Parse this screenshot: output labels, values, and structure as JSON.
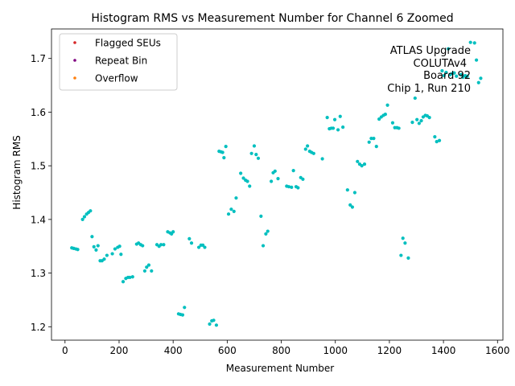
{
  "chart_data": {
    "type": "scatter",
    "title": "Histogram RMS vs Measurement Number for Channel 6 Zoomed",
    "xlabel": "Measurement Number",
    "ylabel": "Histogram RMS",
    "xlim": [
      -50,
      1620
    ],
    "ylim": [
      1.175,
      1.755
    ],
    "xticks": [
      0,
      200,
      400,
      600,
      800,
      1000,
      1200,
      1400,
      1600
    ],
    "yticks": [
      1.2,
      1.3,
      1.4,
      1.5,
      1.6,
      1.7
    ],
    "grid": false,
    "legend": {
      "placement": "upper-left",
      "entries": [
        {
          "label": "Flagged SEUs",
          "color": "#d62728"
        },
        {
          "label": "Repeat Bin",
          "color": "#800080"
        },
        {
          "label": "Overflow",
          "color": "#ff7f0e"
        }
      ]
    },
    "annotation_lines": [
      "ATLAS Upgrade",
      "COLUTAv4",
      "Board 92",
      "Chip 1, Run 210"
    ],
    "series": [
      {
        "color": "#00bfbf",
        "points": [
          [
            25,
            1.347
          ],
          [
            32,
            1.346
          ],
          [
            40,
            1.345
          ],
          [
            47,
            1.344
          ],
          [
            65,
            1.4
          ],
          [
            72,
            1.405
          ],
          [
            80,
            1.41
          ],
          [
            87,
            1.413
          ],
          [
            94,
            1.416
          ],
          [
            100,
            1.368
          ],
          [
            107,
            1.349
          ],
          [
            115,
            1.343
          ],
          [
            122,
            1.351
          ],
          [
            130,
            1.323
          ],
          [
            137,
            1.323
          ],
          [
            145,
            1.326
          ],
          [
            155,
            1.333
          ],
          [
            175,
            1.336
          ],
          [
            185,
            1.345
          ],
          [
            195,
            1.348
          ],
          [
            202,
            1.35
          ],
          [
            207,
            1.335
          ],
          [
            215,
            1.284
          ],
          [
            225,
            1.29
          ],
          [
            233,
            1.292
          ],
          [
            240,
            1.292
          ],
          [
            250,
            1.293
          ],
          [
            265,
            1.354
          ],
          [
            272,
            1.356
          ],
          [
            280,
            1.353
          ],
          [
            287,
            1.351
          ],
          [
            295,
            1.304
          ],
          [
            302,
            1.311
          ],
          [
            310,
            1.315
          ],
          [
            320,
            1.304
          ],
          [
            340,
            1.353
          ],
          [
            348,
            1.35
          ],
          [
            355,
            1.353
          ],
          [
            365,
            1.353
          ],
          [
            380,
            1.377
          ],
          [
            388,
            1.375
          ],
          [
            394,
            1.373
          ],
          [
            400,
            1.377
          ],
          [
            420,
            1.224
          ],
          [
            427,
            1.223
          ],
          [
            435,
            1.222
          ],
          [
            442,
            1.236
          ],
          [
            460,
            1.364
          ],
          [
            468,
            1.356
          ],
          [
            495,
            1.348
          ],
          [
            503,
            1.352
          ],
          [
            510,
            1.352
          ],
          [
            517,
            1.348
          ],
          [
            535,
            1.205
          ],
          [
            543,
            1.211
          ],
          [
            550,
            1.212
          ],
          [
            560,
            1.203
          ],
          [
            570,
            1.527
          ],
          [
            577,
            1.526
          ],
          [
            583,
            1.525
          ],
          [
            588,
            1.515
          ],
          [
            595,
            1.536
          ],
          [
            605,
            1.41
          ],
          [
            615,
            1.419
          ],
          [
            625,
            1.415
          ],
          [
            633,
            1.44
          ],
          [
            650,
            1.486
          ],
          [
            660,
            1.477
          ],
          [
            668,
            1.473
          ],
          [
            675,
            1.471
          ],
          [
            683,
            1.462
          ],
          [
            690,
            1.523
          ],
          [
            700,
            1.537
          ],
          [
            707,
            1.521
          ],
          [
            715,
            1.514
          ],
          [
            725,
            1.406
          ],
          [
            733,
            1.351
          ],
          [
            743,
            1.373
          ],
          [
            750,
            1.378
          ],
          [
            763,
            1.471
          ],
          [
            770,
            1.487
          ],
          [
            777,
            1.49
          ],
          [
            788,
            1.476
          ],
          [
            820,
            1.462
          ],
          [
            828,
            1.461
          ],
          [
            838,
            1.46
          ],
          [
            845,
            1.491
          ],
          [
            855,
            1.461
          ],
          [
            862,
            1.459
          ],
          [
            872,
            1.478
          ],
          [
            880,
            1.475
          ],
          [
            890,
            1.531
          ],
          [
            897,
            1.537
          ],
          [
            905,
            1.527
          ],
          [
            912,
            1.525
          ],
          [
            920,
            1.523
          ],
          [
            952,
            1.513
          ],
          [
            970,
            1.59
          ],
          [
            978,
            1.569
          ],
          [
            985,
            1.57
          ],
          [
            992,
            1.57
          ],
          [
            998,
            1.586
          ],
          [
            1010,
            1.567
          ],
          [
            1018,
            1.592
          ],
          [
            1028,
            1.572
          ],
          [
            1045,
            1.455
          ],
          [
            1055,
            1.427
          ],
          [
            1063,
            1.423
          ],
          [
            1072,
            1.45
          ],
          [
            1082,
            1.508
          ],
          [
            1090,
            1.503
          ],
          [
            1098,
            1.5
          ],
          [
            1108,
            1.503
          ],
          [
            1125,
            1.544
          ],
          [
            1133,
            1.551
          ],
          [
            1142,
            1.551
          ],
          [
            1152,
            1.536
          ],
          [
            1162,
            1.587
          ],
          [
            1170,
            1.591
          ],
          [
            1178,
            1.594
          ],
          [
            1185,
            1.596
          ],
          [
            1193,
            1.613
          ],
          [
            1212,
            1.58
          ],
          [
            1220,
            1.571
          ],
          [
            1228,
            1.571
          ],
          [
            1235,
            1.57
          ],
          [
            1243,
            1.333
          ],
          [
            1250,
            1.365
          ],
          [
            1258,
            1.356
          ],
          [
            1270,
            1.328
          ],
          [
            1285,
            1.581
          ],
          [
            1295,
            1.626
          ],
          [
            1302,
            1.586
          ],
          [
            1310,
            1.579
          ],
          [
            1318,
            1.584
          ],
          [
            1325,
            1.591
          ],
          [
            1333,
            1.594
          ],
          [
            1340,
            1.593
          ],
          [
            1348,
            1.59
          ],
          [
            1368,
            1.554
          ],
          [
            1375,
            1.545
          ],
          [
            1385,
            1.547
          ],
          [
            1395,
            1.677
          ],
          [
            1402,
            1.668
          ],
          [
            1410,
            1.674
          ],
          [
            1418,
            1.718
          ],
          [
            1425,
            1.67
          ],
          [
            1433,
            1.672
          ],
          [
            1440,
            1.673
          ],
          [
            1448,
            1.667
          ],
          [
            1465,
            1.67
          ],
          [
            1472,
            1.665
          ],
          [
            1480,
            1.668
          ],
          [
            1488,
            1.667
          ],
          [
            1500,
            1.73
          ],
          [
            1515,
            1.729
          ],
          [
            1522,
            1.697
          ],
          [
            1530,
            1.655
          ],
          [
            1538,
            1.663
          ]
        ]
      }
    ]
  }
}
